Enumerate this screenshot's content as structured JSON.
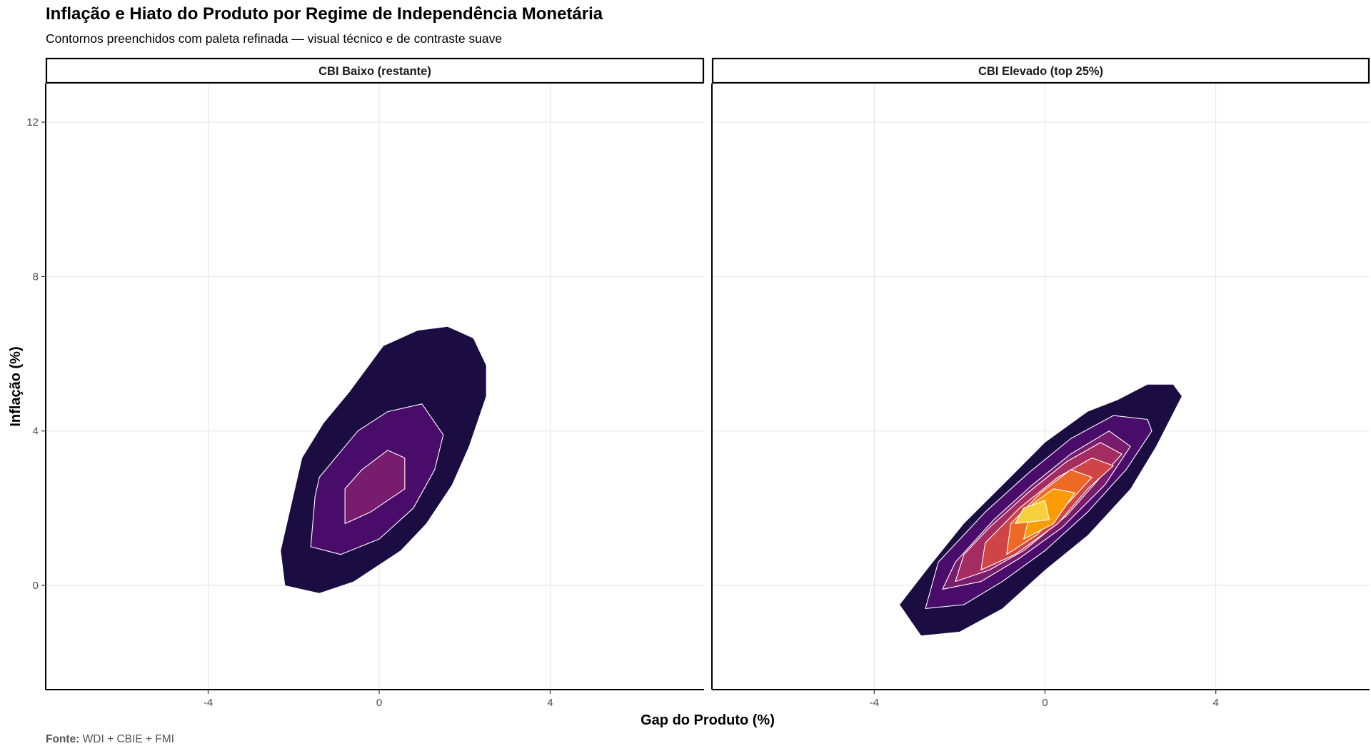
{
  "title": "Inflação e Hiato do Produto por Regime de Independência Monetária",
  "subtitle": "Contornos preenchidos com paleta refinada — visual técnico e de contraste suave",
  "caption": {
    "label": "Fonte:",
    "text": "WDI + CBIE + FMI"
  },
  "chart_data": {
    "type": "area",
    "subtype": "filled density contour (faceted)",
    "xlabel": "Gap do Produto (%)",
    "ylabel": "Inflação (%)",
    "xlim": [
      -7.8,
      7.6
    ],
    "ylim": [
      -2.7,
      13.0
    ],
    "x_ticks": [
      -4,
      0,
      4
    ],
    "y_ticks": [
      0,
      4,
      8,
      12
    ],
    "grid": true,
    "palette": [
      "#1b0c41",
      "#4a0c6b",
      "#781c6d",
      "#a52c60",
      "#cf4446",
      "#ed6925",
      "#fb9b06",
      "#f7d13d"
    ],
    "contour_line_color": "#ffffff",
    "panels": [
      {
        "strip": "CBI Baixo (restante)",
        "levels": [
          {
            "level": 1,
            "polygon": [
              [
                0.1,
                6.2
              ],
              [
                0.9,
                6.6
              ],
              [
                1.6,
                6.7
              ],
              [
                2.2,
                6.4
              ],
              [
                2.5,
                5.7
              ],
              [
                2.5,
                4.9
              ],
              [
                2.1,
                3.6
              ],
              [
                1.7,
                2.6
              ],
              [
                1.1,
                1.6
              ],
              [
                0.5,
                0.9
              ],
              [
                -0.6,
                0.1
              ],
              [
                -1.4,
                -0.2
              ],
              [
                -2.2,
                0.0
              ],
              [
                -2.3,
                0.9
              ],
              [
                -1.8,
                3.3
              ],
              [
                -1.3,
                4.2
              ],
              [
                -0.7,
                5.0
              ]
            ]
          },
          {
            "level": 2,
            "polygon": [
              [
                -1.6,
                1.0
              ],
              [
                -0.9,
                0.8
              ],
              [
                0.0,
                1.2
              ],
              [
                0.8,
                2.0
              ],
              [
                1.3,
                3.0
              ],
              [
                1.5,
                3.9
              ],
              [
                1.0,
                4.7
              ],
              [
                0.2,
                4.5
              ],
              [
                -0.5,
                4.0
              ],
              [
                -1.4,
                2.8
              ],
              [
                -1.5,
                2.3
              ]
            ]
          },
          {
            "level": 3,
            "polygon": [
              [
                -0.8,
                1.6
              ],
              [
                -0.2,
                1.9
              ],
              [
                0.6,
                2.5
              ],
              [
                0.6,
                3.3
              ],
              [
                0.2,
                3.5
              ],
              [
                -0.4,
                3.0
              ],
              [
                -0.8,
                2.5
              ]
            ]
          }
        ]
      },
      {
        "strip": "CBI Elevado (top 25%)",
        "levels": [
          {
            "level": 1,
            "polygon": [
              [
                -2.9,
                -1.3
              ],
              [
                -2.0,
                -1.2
              ],
              [
                -1.0,
                -0.6
              ],
              [
                0.0,
                0.4
              ],
              [
                1.0,
                1.3
              ],
              [
                2.0,
                2.5
              ],
              [
                2.6,
                3.6
              ],
              [
                3.2,
                4.9
              ],
              [
                3.0,
                5.2
              ],
              [
                2.4,
                5.2
              ],
              [
                1.7,
                4.8
              ],
              [
                1.0,
                4.5
              ],
              [
                0.0,
                3.7
              ],
              [
                -0.9,
                2.7
              ],
              [
                -1.9,
                1.6
              ],
              [
                -2.7,
                0.5
              ],
              [
                -3.4,
                -0.5
              ]
            ]
          },
          {
            "level": 2,
            "polygon": [
              [
                -2.8,
                -0.6
              ],
              [
                -1.9,
                -0.5
              ],
              [
                -1.0,
                0.1
              ],
              [
                0.0,
                0.9
              ],
              [
                1.0,
                1.9
              ],
              [
                1.9,
                3.0
              ],
              [
                2.5,
                4.0
              ],
              [
                2.4,
                4.3
              ],
              [
                1.6,
                4.4
              ],
              [
                0.6,
                3.8
              ],
              [
                -0.4,
                2.9
              ],
              [
                -1.4,
                1.9
              ],
              [
                -2.5,
                0.6
              ]
            ]
          },
          {
            "level": 3,
            "polygon": [
              [
                -2.4,
                -0.1
              ],
              [
                -1.5,
                0.1
              ],
              [
                -0.6,
                0.7
              ],
              [
                0.4,
                1.5
              ],
              [
                1.4,
                2.6
              ],
              [
                2.0,
                3.6
              ],
              [
                1.5,
                4.0
              ],
              [
                0.6,
                3.4
              ],
              [
                -0.3,
                2.6
              ],
              [
                -1.2,
                1.7
              ],
              [
                -2.1,
                0.6
              ]
            ]
          },
          {
            "level": 4,
            "polygon": [
              [
                -2.1,
                0.1
              ],
              [
                -1.3,
                0.4
              ],
              [
                -0.5,
                0.9
              ],
              [
                0.5,
                1.8
              ],
              [
                1.3,
                2.8
              ],
              [
                1.8,
                3.4
              ],
              [
                1.3,
                3.7
              ],
              [
                0.5,
                3.2
              ],
              [
                -0.4,
                2.4
              ],
              [
                -1.3,
                1.5
              ],
              [
                -1.9,
                0.8
              ]
            ]
          },
          {
            "level": 5,
            "polygon": [
              [
                -1.5,
                0.4
              ],
              [
                -0.7,
                0.8
              ],
              [
                0.3,
                1.6
              ],
              [
                1.0,
                2.5
              ],
              [
                1.6,
                3.1
              ],
              [
                1.1,
                3.3
              ],
              [
                0.3,
                2.8
              ],
              [
                -0.6,
                2.0
              ],
              [
                -1.4,
                1.1
              ]
            ]
          },
          {
            "level": 6,
            "polygon": [
              [
                -0.9,
                0.8
              ],
              [
                -0.2,
                1.3
              ],
              [
                0.6,
                2.2
              ],
              [
                1.1,
                2.8
              ],
              [
                0.6,
                3.0
              ],
              [
                -0.1,
                2.4
              ],
              [
                -0.8,
                1.6
              ]
            ]
          },
          {
            "level": 7,
            "polygon": [
              [
                -0.5,
                1.2
              ],
              [
                0.2,
                1.6
              ],
              [
                0.7,
                2.4
              ],
              [
                0.2,
                2.5
              ],
              [
                -0.3,
                2.1
              ]
            ]
          },
          {
            "level": 8,
            "polygon": [
              [
                -0.7,
                1.6
              ],
              [
                0.1,
                1.7
              ],
              [
                0.0,
                2.2
              ],
              [
                -0.5,
                2.0
              ]
            ]
          }
        ]
      }
    ]
  }
}
